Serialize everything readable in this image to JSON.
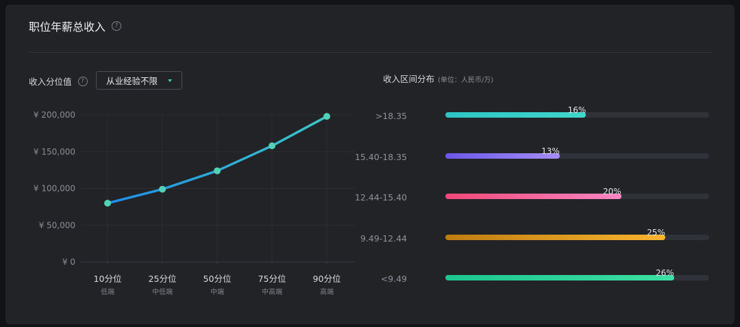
{
  "header": {
    "title": "职位年薪总收入",
    "help_icon": "?"
  },
  "left_panel": {
    "title": "收入分位值",
    "help_icon": "?",
    "dropdown": {
      "selected": "从业经验不限"
    }
  },
  "right_panel": {
    "title": "收入区间分布",
    "unit": "(单位：人民币/万)"
  },
  "colors": {
    "line_start": "#1e8ee8",
    "line_end": "#3cc6c7",
    "point": "#51d1b5"
  },
  "chart_data": [
    {
      "type": "line",
      "title": "",
      "y_tick_labels": [
        "¥ 200,000",
        "¥ 150,000",
        "¥ 100,000",
        "¥ 50,000",
        "¥ 0"
      ],
      "y_ticks": [
        200000,
        150000,
        100000,
        50000,
        0
      ],
      "ylim": [
        0,
        200000
      ],
      "categories": [
        "10分位",
        "25分位",
        "50分位",
        "75分位",
        "90分位"
      ],
      "sublabels": [
        "低端",
        "中低端",
        "中端",
        "中高端",
        "高端"
      ],
      "values": [
        80000,
        99000,
        124000,
        158000,
        198000
      ],
      "grid": true
    },
    {
      "type": "bar",
      "orientation": "horizontal",
      "categories": [
        ">18.35",
        "15.40-18.35",
        "12.44-15.40",
        "9.49-12.44",
        "<9.49"
      ],
      "values": [
        16,
        13,
        20,
        25,
        26
      ],
      "value_labels": [
        "16%",
        "13%",
        "20%",
        "25%",
        "26%"
      ],
      "max": 30,
      "colors": [
        [
          "#2ec4c4",
          "#40d6cb"
        ],
        [
          "#6a57e8",
          "#a58df5"
        ],
        [
          "#f04877",
          "#f886c4"
        ],
        [
          "#c07c10",
          "#f9b52e"
        ],
        [
          "#1cc68f",
          "#3ddfa3"
        ]
      ]
    }
  ]
}
